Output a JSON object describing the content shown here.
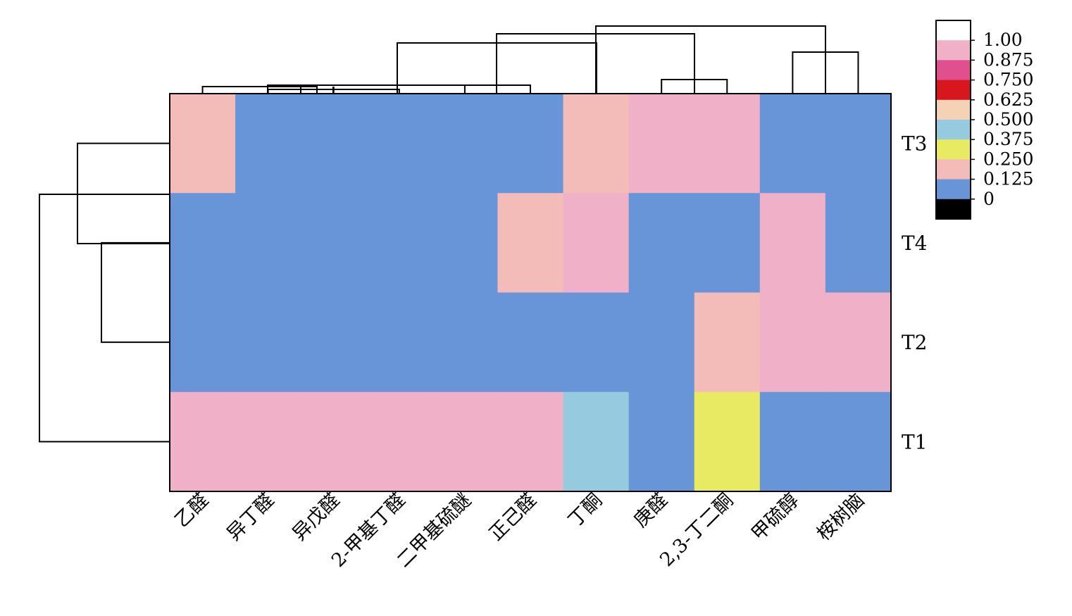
{
  "chart_data": {
    "type": "heatmap",
    "title": "",
    "columns": [
      "乙醛",
      "异丁醛",
      "异戊醛",
      "2-甲基丁醛",
      "二甲基硫醚",
      "正己醛",
      "丁酮",
      "庚醛",
      "2,3-丁二酮",
      "甲硫醇",
      "桉树脑"
    ],
    "rows": [
      "T3",
      "T4",
      "T2",
      "T1"
    ],
    "values": [
      [
        0.25,
        0.125,
        0.125,
        0.125,
        0.125,
        0.125,
        0.25,
        1.0,
        1.0,
        0.125,
        0.125
      ],
      [
        0.125,
        0.125,
        0.125,
        0.125,
        0.125,
        0.25,
        1.0,
        0.125,
        0.125,
        1.0,
        0.125
      ],
      [
        0.125,
        0.125,
        0.125,
        0.125,
        0.125,
        0.125,
        0.125,
        0.125,
        0.25,
        1.0,
        1.0
      ],
      [
        1.0,
        1.0,
        1.0,
        1.0,
        1.0,
        1.0,
        0.5,
        0.125,
        0.375,
        0.125,
        0.125
      ]
    ],
    "legend": {
      "labels": [
        "1.00",
        "0.875",
        "0.750",
        "0.625",
        "0.500",
        "0.375",
        "0.250",
        "0.125",
        "0"
      ],
      "colors": [
        "#ffffff",
        "#f0b0c8",
        "#e0508e",
        "#d8161e",
        "#f5d2b6",
        "#96cadf",
        "#e8ea62",
        "#f4bcb8",
        "#6894d8",
        "#000000"
      ]
    },
    "colorscale": [
      {
        "from": 0.0,
        "to": 0.125,
        "color": "#000000"
      },
      {
        "from": 0.125,
        "to": 0.25,
        "color": "#6894d8"
      },
      {
        "from": 0.25,
        "to": 0.375,
        "color": "#f4bcb8"
      },
      {
        "from": 0.375,
        "to": 0.5,
        "color": "#e8ea62"
      },
      {
        "from": 0.5,
        "to": 0.625,
        "color": "#96cadf"
      },
      {
        "from": 0.625,
        "to": 0.75,
        "color": "#f5d2b6"
      },
      {
        "from": 0.75,
        "to": 0.875,
        "color": "#d8161e"
      },
      {
        "from": 0.875,
        "to": 1.0,
        "color": "#e0508e"
      },
      {
        "from": 1.0,
        "to": 1.0,
        "color": "#f0b0c8"
      }
    ],
    "column_dendrogram": true,
    "row_dendrogram": true,
    "grid": false,
    "legend_position": "top-right"
  }
}
